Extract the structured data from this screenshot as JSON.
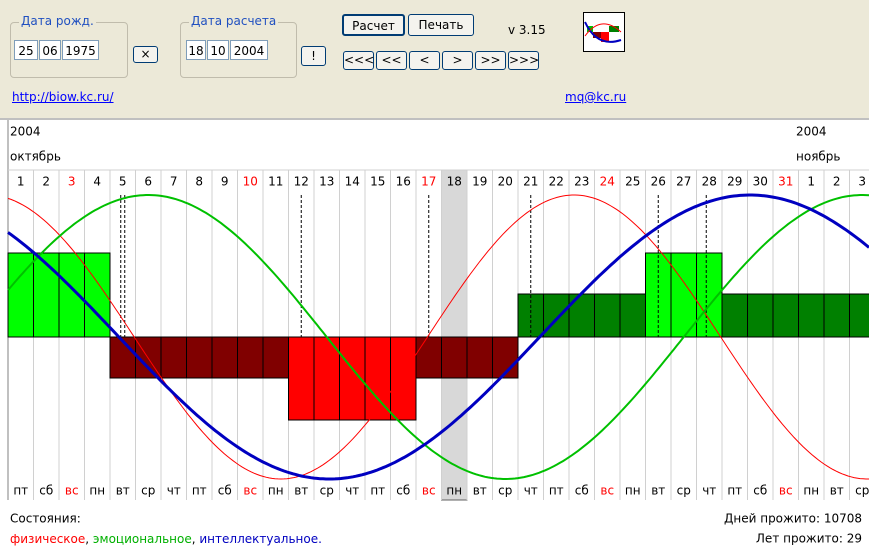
{
  "birth": {
    "legend": "Дата рожд.",
    "day": "25",
    "month": "06",
    "year": "1975",
    "button": "×"
  },
  "calc": {
    "legend": "Дата расчета",
    "day": "18",
    "month": "10",
    "year": "2004",
    "button": "!"
  },
  "buttons": [
    "Расчет",
    "Печать"
  ],
  "version": "v 3.15",
  "nav": [
    "<<<",
    "<<",
    "<",
    ">",
    ">>",
    ">>>"
  ],
  "links": [
    "http://biow.kc.ru/",
    "mq@kc.ru"
  ],
  "chart": {
    "year_left": "2004",
    "month_left": "октябрь",
    "year_right": "2004",
    "month_right": "ноябрь",
    "days": [
      {
        "label": "1",
        "weekday": "пт",
        "color": "#000000"
      },
      {
        "label": "2",
        "weekday": "сб",
        "color": "#000000"
      },
      {
        "label": "3",
        "weekday": "вс",
        "color": "#ff0000"
      },
      {
        "label": "4",
        "weekday": "пн",
        "color": "#000000"
      },
      {
        "label": "5",
        "weekday": "вт",
        "color": "#000000"
      },
      {
        "label": "6",
        "weekday": "ср",
        "color": "#000000"
      },
      {
        "label": "7",
        "weekday": "чт",
        "color": "#000000"
      },
      {
        "label": "8",
        "weekday": "пт",
        "color": "#000000"
      },
      {
        "label": "9",
        "weekday": "сб",
        "color": "#000000"
      },
      {
        "label": "10",
        "weekday": "вс",
        "color": "#ff0000"
      },
      {
        "label": "11",
        "weekday": "пн",
        "color": "#000000"
      },
      {
        "label": "12",
        "weekday": "вт",
        "color": "#000000"
      },
      {
        "label": "13",
        "weekday": "ср",
        "color": "#000000"
      },
      {
        "label": "14",
        "weekday": "чт",
        "color": "#000000"
      },
      {
        "label": "15",
        "weekday": "пт",
        "color": "#000000"
      },
      {
        "label": "16",
        "weekday": "сб",
        "color": "#000000"
      },
      {
        "label": "17",
        "weekday": "вс",
        "color": "#ff0000"
      },
      {
        "label": "18",
        "weekday": "пн",
        "color": "#000000",
        "selected": true
      },
      {
        "label": "19",
        "weekday": "вт",
        "color": "#000000"
      },
      {
        "label": "20",
        "weekday": "ср",
        "color": "#000000"
      },
      {
        "label": "21",
        "weekday": "чт",
        "color": "#000000"
      },
      {
        "label": "22",
        "weekday": "пт",
        "color": "#000000"
      },
      {
        "label": "23",
        "weekday": "сб",
        "color": "#000000"
      },
      {
        "label": "24",
        "weekday": "вс",
        "color": "#ff0000"
      },
      {
        "label": "25",
        "weekday": "пн",
        "color": "#000000"
      },
      {
        "label": "26",
        "weekday": "вт",
        "color": "#000000"
      },
      {
        "label": "27",
        "weekday": "ср",
        "color": "#000000"
      },
      {
        "label": "28",
        "weekday": "чт",
        "color": "#000000"
      },
      {
        "label": "29",
        "weekday": "пт",
        "color": "#000000"
      },
      {
        "label": "30",
        "weekday": "сб",
        "color": "#000000"
      },
      {
        "label": "31",
        "weekday": "вс",
        "color": "#ff0000"
      },
      {
        "label": "1",
        "weekday": "пн",
        "color": "#000000"
      },
      {
        "label": "2",
        "weekday": "вт",
        "color": "#000000"
      },
      {
        "label": "3",
        "weekday": "ср",
        "color": "#000000"
      }
    ]
  },
  "legend": {
    "title": "Состояния:",
    "parts": [
      {
        "text": "физическое",
        "color": "#ff0000"
      },
      {
        "text": ",",
        "color": "#000000"
      },
      {
        "text": " эмоциональное",
        "color": "#00b000"
      },
      {
        "text": ",",
        "color": "#000000"
      },
      {
        "text": " интеллектуальное.",
        "color": "#0000c0"
      }
    ]
  },
  "stats": [
    "Дней прожито: 10708",
    "Лет прожито: 29"
  ]
}
